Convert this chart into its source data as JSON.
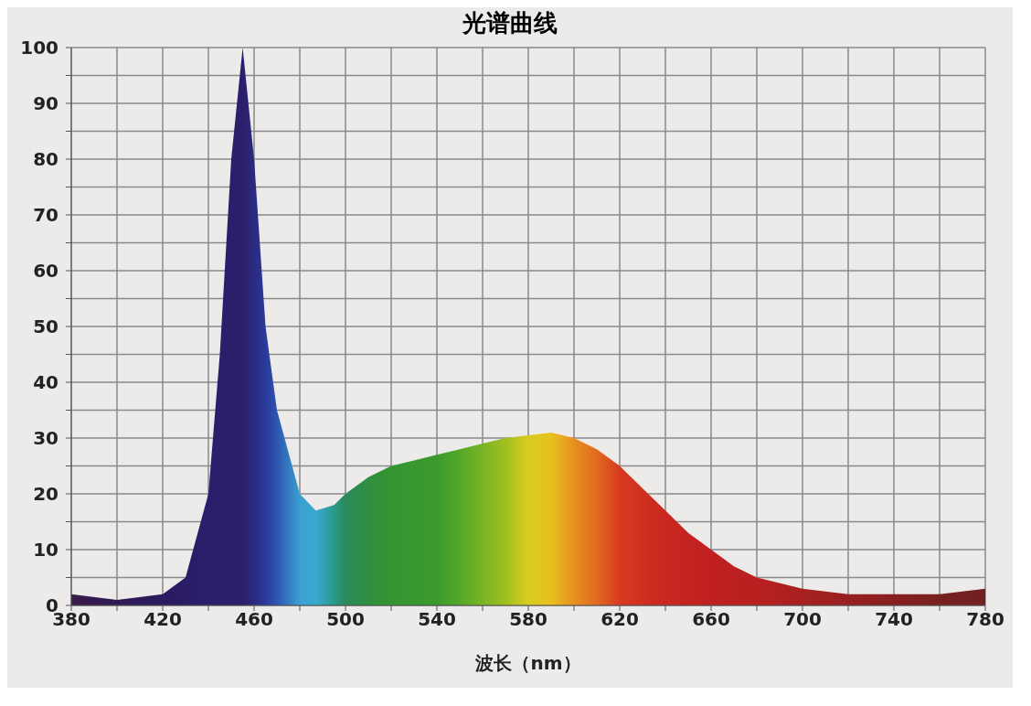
{
  "chart_data": {
    "type": "area",
    "title": "光谱曲线",
    "xlabel": "波长（nm）",
    "x": [
      380,
      400,
      420,
      430,
      440,
      445,
      450,
      455,
      460,
      465,
      470,
      480,
      487,
      495,
      500,
      510,
      520,
      530,
      540,
      550,
      560,
      570,
      580,
      590,
      600,
      610,
      620,
      630,
      640,
      650,
      660,
      670,
      680,
      700,
      720,
      740,
      760,
      770,
      780
    ],
    "series": [
      {
        "values": [
          2,
          1,
          2,
          5,
          20,
          45,
          80,
          100,
          80,
          50,
          35,
          20,
          17,
          18,
          20,
          23,
          25,
          26,
          27,
          28,
          29,
          30,
          30.5,
          31,
          30,
          28,
          25,
          21,
          17,
          13,
          10,
          7,
          5,
          3,
          2,
          2,
          2,
          2.5,
          3
        ],
        "colors": [
          "#3a1a4a",
          "#2f1a55",
          "#2a1a60",
          "#2a1c66",
          "#2b1f6b",
          "#2b1f6b",
          "#2b1f6b",
          "#2b1f6b",
          "#2a2a80",
          "#2a3a9a",
          "#2e55b0",
          "#3aa0d0",
          "#3aa8d0",
          "#2a9a8a",
          "#2a8a5a",
          "#2f8f40",
          "#349430",
          "#389830",
          "#3a9a2a",
          "#55a828",
          "#78b424",
          "#a0c020",
          "#d8cc20",
          "#e8c020",
          "#e89020",
          "#e06a20",
          "#d83a20",
          "#d03020",
          "#c82820",
          "#c42420",
          "#c02020",
          "#bc2020",
          "#b82020",
          "#a82020",
          "#982020",
          "#882020",
          "#782020",
          "#742020",
          "#702020"
        ]
      }
    ],
    "xlim": [
      380,
      780
    ],
    "xticks": [
      380,
      {
        "value": 400,
        "label": null
      },
      420,
      {
        "value": 440,
        "label": null
      },
      460,
      {
        "value": 480,
        "label": null
      },
      500,
      {
        "value": 520,
        "label": null
      },
      540,
      {
        "value": 560,
        "label": null
      },
      580,
      {
        "value": 600,
        "label": null
      },
      620,
      {
        "value": 640,
        "label": null
      },
      660,
      {
        "value": 680,
        "label": null
      },
      700,
      {
        "value": 720,
        "label": null
      },
      740,
      {
        "value": 760,
        "label": null
      },
      780
    ],
    "ylim": [
      0,
      100
    ],
    "yticks": [
      0,
      {
        "value": 5,
        "label": null
      },
      10,
      {
        "value": 15,
        "label": null
      },
      20,
      {
        "value": 25,
        "label": null
      },
      30,
      {
        "value": 35,
        "label": null
      },
      40,
      {
        "value": 45,
        "label": null
      },
      50,
      {
        "value": 55,
        "label": null
      },
      60,
      {
        "value": 65,
        "label": null
      },
      70,
      {
        "value": 75,
        "label": null
      },
      80,
      {
        "value": 85,
        "label": null
      },
      90,
      {
        "value": 95,
        "label": null
      },
      100
    ],
    "grid": true
  }
}
